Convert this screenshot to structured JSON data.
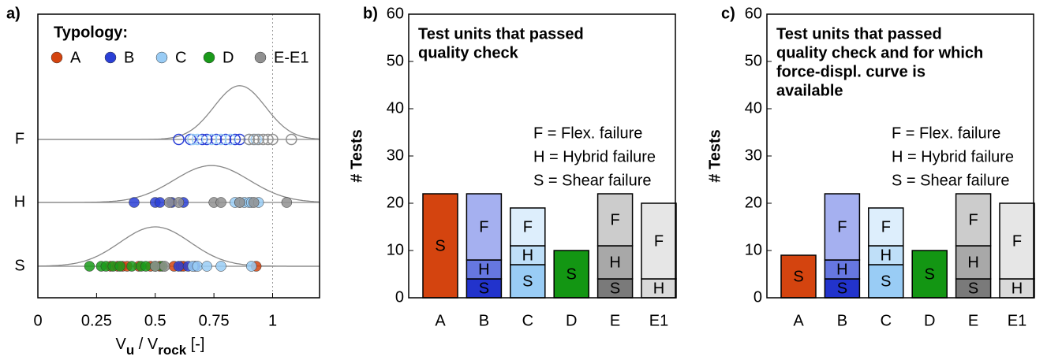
{
  "chart_data": [
    {
      "type": "strip",
      "panel": "a)",
      "legend_title": "Typology:",
      "categories": [
        "F",
        "H",
        "S"
      ],
      "markers": [
        "open",
        "filled",
        "filled"
      ],
      "xlim": [
        0,
        1.2
      ],
      "xticks": [
        0,
        0.25,
        0.5,
        0.75,
        1
      ],
      "reference_line": 1,
      "xlabel": {
        "v1": "V",
        "sub1": "u",
        "v2": " / V",
        "sub2": "rock",
        "unit": " [-]"
      },
      "fits": [
        {
          "mean": 0.86,
          "sd": 0.11
        },
        {
          "mean": 0.74,
          "sd": 0.16
        },
        {
          "mean": 0.5,
          "sd": 0.15
        }
      ],
      "series": [
        {
          "name": "A",
          "color": "#d4440f",
          "values": [
            [],
            [],
            [
              0.31,
              0.34,
              0.36,
              0.38,
              0.43,
              0.48,
              0.52,
              0.58,
              0.61,
              0.62,
              0.93
            ]
          ]
        },
        {
          "name": "B",
          "color": "#2a3fd6",
          "values": [
            [
              0.6,
              0.65,
              0.7,
              0.72,
              0.76,
              0.8,
              0.84,
              0.86
            ],
            [
              0.41,
              0.5,
              0.52,
              0.57,
              0.62
            ],
            [
              0.6,
              0.64,
              0.67
            ]
          ]
        },
        {
          "name": "C",
          "color": "#99ccf5",
          "values": [
            [
              0.66,
              0.68,
              0.74,
              0.78,
              0.82,
              0.9,
              0.93
            ],
            [
              0.84,
              0.86,
              0.88,
              0.9,
              0.91,
              0.94
            ],
            [
              0.66,
              0.68,
              0.72,
              0.78,
              0.91
            ]
          ]
        },
        {
          "name": "D",
          "color": "#1a9a1a",
          "values": [
            [],
            [],
            [
              0.22,
              0.27,
              0.29,
              0.32,
              0.35,
              0.4,
              0.44,
              0.46,
              0.5,
              0.53
            ]
          ]
        },
        {
          "name": "E-E1",
          "color": "#909090",
          "values": [
            [
              0.9,
              0.92,
              0.94,
              0.96,
              0.98,
              1.0,
              1.08
            ],
            [
              0.56,
              0.6,
              0.75,
              0.78,
              0.86,
              0.92,
              1.06
            ],
            [
              0.5,
              0.54
            ]
          ]
        }
      ]
    },
    {
      "type": "stacked-bar",
      "panel": "b)",
      "title": [
        "Test units that passed",
        "quality check"
      ],
      "notes": [
        "F = Flex. failure",
        "H = Hybrid failure",
        "S = Shear failure"
      ],
      "ylabel": "# Tests",
      "categories": [
        "A",
        "B",
        "C",
        "D",
        "E",
        "E1"
      ],
      "ylim": [
        0,
        60
      ],
      "yticks": [
        0,
        10,
        20,
        30,
        40,
        50,
        60
      ],
      "series": [
        {
          "name": "S",
          "values": [
            22,
            4,
            7,
            10,
            4,
            null
          ],
          "colors": [
            "#d4440f",
            "#2233cc",
            "#99ccf5",
            "#139613",
            "#7a7a7a",
            null
          ]
        },
        {
          "name": "H",
          "values": [
            null,
            4,
            4,
            null,
            7,
            4
          ],
          "colors": [
            null,
            "#6677e0",
            "#bfdff8",
            null,
            "#a8a8a8",
            "#d9d9d9"
          ]
        },
        {
          "name": "F",
          "values": [
            null,
            14,
            8,
            null,
            11,
            16
          ],
          "colors": [
            null,
            "#a5b0f0",
            "#ddeefc",
            null,
            "#cccccc",
            "#e6e6e6"
          ]
        }
      ]
    },
    {
      "type": "stacked-bar",
      "panel": "c)",
      "title": [
        "Test units that passed",
        "quality check and for which",
        "force-displ. curve is",
        "available"
      ],
      "notes": [
        "F = Flex. failure",
        "H = Hybrid failure",
        "S = Shear failure"
      ],
      "ylabel": "# Tests",
      "categories": [
        "A",
        "B",
        "C",
        "D",
        "E",
        "E1"
      ],
      "ylim": [
        0,
        60
      ],
      "yticks": [
        0,
        10,
        20,
        30,
        40,
        50,
        60
      ],
      "series": [
        {
          "name": "S",
          "values": [
            9,
            4,
            7,
            10,
            4,
            null
          ],
          "colors": [
            "#d4440f",
            "#2233cc",
            "#99ccf5",
            "#139613",
            "#7a7a7a",
            null
          ]
        },
        {
          "name": "H",
          "values": [
            null,
            4,
            4,
            null,
            7,
            4
          ],
          "colors": [
            null,
            "#6677e0",
            "#bfdff8",
            null,
            "#a8a8a8",
            "#d9d9d9"
          ]
        },
        {
          "name": "F",
          "values": [
            null,
            14,
            8,
            null,
            11,
            16
          ],
          "colors": [
            null,
            "#a5b0f0",
            "#ddeefc",
            null,
            "#cccccc",
            "#e6e6e6"
          ]
        }
      ]
    }
  ]
}
